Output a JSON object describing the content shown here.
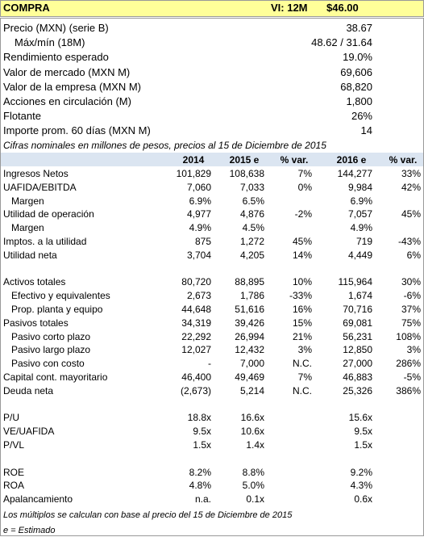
{
  "header": {
    "action": "COMPRA",
    "target_label": "VI: 12M",
    "target_price": "$46.00"
  },
  "key_data": [
    {
      "label": "Precio (MXN) (serie B)",
      "value": "38.67"
    },
    {
      "label": "Máx/mín (18M)",
      "value": "48.62 / 31.64",
      "indent": true
    },
    {
      "label": "Rendimiento esperado",
      "value": "19.0%"
    },
    {
      "label": "Valor de mercado (MXN M)",
      "value": "69,606"
    },
    {
      "label": "Valor de la empresa (MXN M)",
      "value": "68,820"
    },
    {
      "label": "Acciones en circulación (M)",
      "value": "1,800"
    },
    {
      "label": "Flotante",
      "value": "26%"
    },
    {
      "label": "Importe prom. 60 días (MXN M)",
      "value": "14"
    }
  ],
  "note": "Cifras nominales en millones de pesos, precios al 15 de Diciembre de 2015",
  "table": {
    "columns": [
      "2014",
      "2015 e",
      "% var.",
      "2016 e",
      "% var."
    ],
    "sections": [
      [
        {
          "label": "Ingresos Netos",
          "cells": [
            "101,829",
            "108,638",
            "7%",
            "144,277",
            "33%"
          ]
        },
        {
          "label": "UAFIDA/EBITDA",
          "cells": [
            "7,060",
            "7,033",
            "0%",
            "9,984",
            "42%"
          ]
        },
        {
          "label": "Margen",
          "cells": [
            "6.9%",
            "6.5%",
            null,
            "6.9%",
            null
          ],
          "indent": true
        },
        {
          "label": "Utilidad de operación",
          "cells": [
            "4,977",
            "4,876",
            "-2%",
            "7,057",
            "45%"
          ]
        },
        {
          "label": "Margen",
          "cells": [
            "4.9%",
            "4.5%",
            null,
            "4.9%",
            null
          ],
          "indent": true
        },
        {
          "label": "Imptos. a la utilidad",
          "cells": [
            "875",
            "1,272",
            "45%",
            "719",
            "-43%"
          ]
        },
        {
          "label": "Utilidad neta",
          "cells": [
            "3,704",
            "4,205",
            "14%",
            "4,449",
            "6%"
          ]
        }
      ],
      [
        {
          "label": "Activos totales",
          "cells": [
            "80,720",
            "88,895",
            "10%",
            "115,964",
            "30%"
          ]
        },
        {
          "label": "Efectivo y equivalentes",
          "cells": [
            "2,673",
            "1,786",
            "-33%",
            "1,674",
            "-6%"
          ],
          "indent": true
        },
        {
          "label": "Prop. planta y equipo",
          "cells": [
            "44,648",
            "51,616",
            "16%",
            "70,716",
            "37%"
          ],
          "indent": true
        },
        {
          "label": "Pasivos totales",
          "cells": [
            "34,319",
            "39,426",
            "15%",
            "69,081",
            "75%"
          ]
        },
        {
          "label": "Pasivo corto plazo",
          "cells": [
            "22,292",
            "26,994",
            "21%",
            "56,231",
            "108%"
          ],
          "indent": true
        },
        {
          "label": "Pasivo largo plazo",
          "cells": [
            "12,027",
            "12,432",
            "3%",
            "12,850",
            "3%"
          ],
          "indent": true
        },
        {
          "label": "Pasivo con costo",
          "cells": [
            "-",
            "7,000",
            "N.C.",
            "27,000",
            "286%"
          ],
          "indent": true
        },
        {
          "label": "Capital cont. mayoritario",
          "cells": [
            "46,400",
            "49,469",
            "7%",
            "46,883",
            "-5%"
          ]
        },
        {
          "label": "Deuda neta",
          "cells": [
            "(2,673)",
            "5,214",
            "N.C.",
            "25,326",
            "386%"
          ]
        }
      ],
      [
        {
          "label": "P/U",
          "cells": [
            "18.8x",
            "16.6x",
            null,
            "15.6x",
            null
          ]
        },
        {
          "label": "VE/UAFIDA",
          "cells": [
            "9.5x",
            "10.6x",
            null,
            "9.5x",
            null
          ]
        },
        {
          "label": "P/VL",
          "cells": [
            "1.5x",
            "1.4x",
            null,
            "1.5x",
            null
          ]
        }
      ],
      [
        {
          "label": "ROE",
          "cells": [
            "8.2%",
            "8.8%",
            null,
            "9.2%",
            null
          ]
        },
        {
          "label": "ROA",
          "cells": [
            "4.8%",
            "5.0%",
            null,
            "4.3%",
            null
          ]
        },
        {
          "label": "Apalancamiento",
          "cells": [
            "n.a.",
            "0.1x",
            null,
            "0.6x",
            null
          ]
        }
      ]
    ]
  },
  "footnotes": [
    "Los múltiplos se calculan con base al precio del 15 de Diciembre de 2015",
    "e = Estimado"
  ]
}
